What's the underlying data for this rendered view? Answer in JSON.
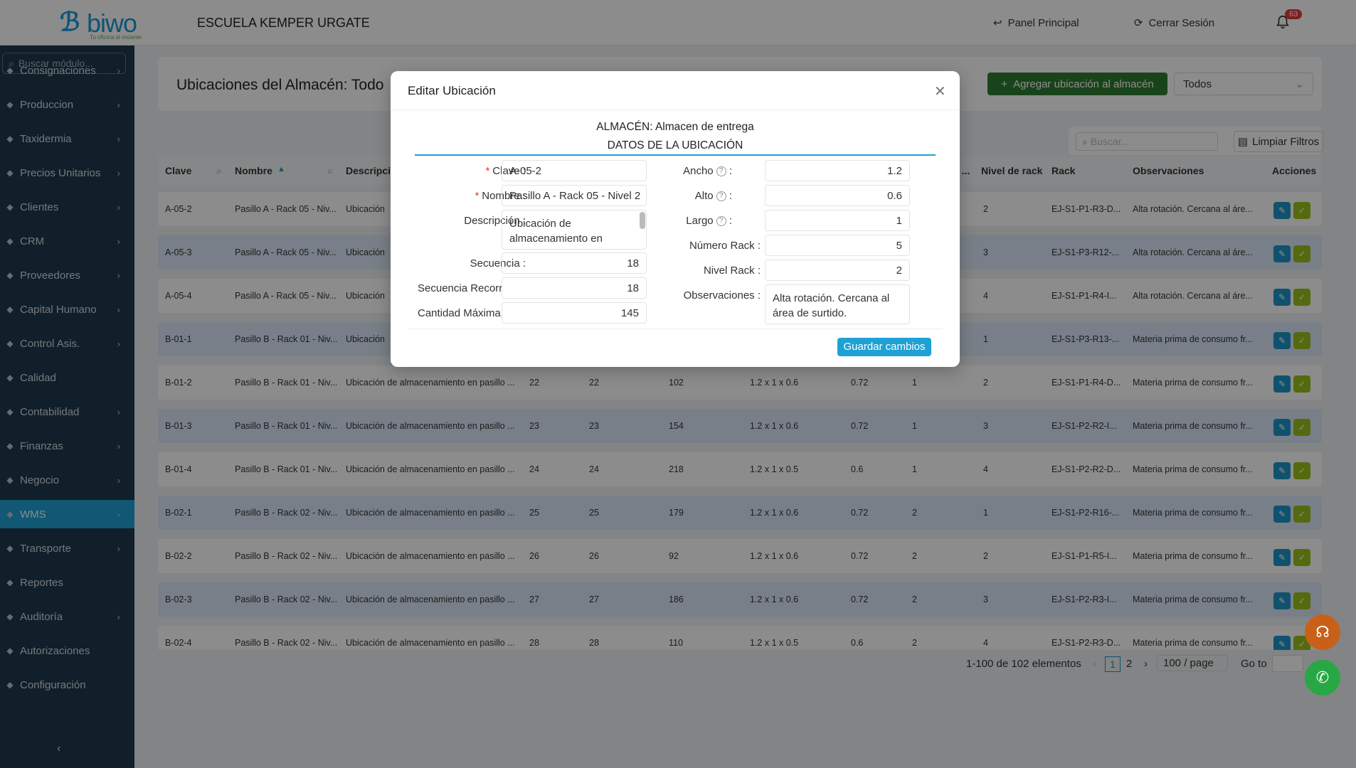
{
  "header": {
    "logo_text": "biwo",
    "logo_tagline": "Tu oficina al instante",
    "school": "ESCUELA KEMPER URGATE",
    "nav_panel": "Panel Principal",
    "nav_logout": "Cerrar Sesión",
    "notifications": "63"
  },
  "sidebar": {
    "search_placeholder": "Buscar módulo...",
    "items": [
      {
        "label": "Consignaciones",
        "icon": "file-icon"
      },
      {
        "label": "Produccion",
        "icon": "wrench-icon"
      },
      {
        "label": "Taxidermia",
        "icon": "deer-icon"
      },
      {
        "label": "Precios Unitarios",
        "icon": "grid-icon"
      },
      {
        "label": "Clientes",
        "icon": "users-icon"
      },
      {
        "label": "CRM",
        "icon": "crm-icon"
      },
      {
        "label": "Proveedores",
        "icon": "box-icon"
      },
      {
        "label": "Capital Humano",
        "icon": "person-icon"
      },
      {
        "label": "Control Asis.",
        "icon": "calendar-icon"
      },
      {
        "label": "Calidad",
        "icon": "check-icon"
      },
      {
        "label": "Contabilidad",
        "icon": "bank-icon"
      },
      {
        "label": "Finanzas",
        "icon": "finance-icon"
      },
      {
        "label": "Negocio",
        "icon": "frame-icon"
      },
      {
        "label": "WMS",
        "icon": "location-icon"
      },
      {
        "label": "Transporte",
        "icon": "truck-icon"
      },
      {
        "label": "Reportes",
        "icon": "chart-icon"
      },
      {
        "label": "Auditoría",
        "icon": "audit-icon"
      },
      {
        "label": "Autorizaciones",
        "icon": "doc-icon"
      },
      {
        "label": "Configuración",
        "icon": "gear-icon"
      }
    ]
  },
  "page": {
    "title": "Ubicaciones del Almacén: Todo",
    "add_button": "Agregar ubicación al almacén",
    "filter_select": "Todos",
    "search_placeholder": "Buscar...",
    "clear_filters": "Limpiar Filtros"
  },
  "table": {
    "headers": [
      "Clave",
      "Nombre",
      "Descripci",
      "e ...",
      "Nivel de rack",
      "Rack",
      "Observaciones",
      "Acciones"
    ],
    "rows": [
      {
        "clave": "A-05-2",
        "nombre": "Pasillo A - Rack 05 - Niv...",
        "desc": "Ubicación",
        "c1": "",
        "c2": "",
        "c3": "",
        "c4": "",
        "c5": "",
        "c6": "",
        "nivel": "2",
        "rack": "EJ-S1-P1-R3-D...",
        "obs": "Alta rotación. Cercana al áre..."
      },
      {
        "clave": "A-05-3",
        "nombre": "Pasillo A - Rack 05 - Niv...",
        "desc": "Ubicación",
        "c1": "",
        "c2": "",
        "c3": "",
        "c4": "",
        "c5": "",
        "c6": "",
        "nivel": "3",
        "rack": "EJ-S1-P3-R12-...",
        "obs": "Alta rotación. Cercana al áre..."
      },
      {
        "clave": "A-05-4",
        "nombre": "Pasillo A - Rack 05 - Niv...",
        "desc": "Ubicación",
        "c1": "",
        "c2": "",
        "c3": "",
        "c4": "",
        "c5": "",
        "c6": "",
        "nivel": "4",
        "rack": "EJ-S1-P1-R4-I...",
        "obs": "Alta rotación. Cercana al áre..."
      },
      {
        "clave": "B-01-1",
        "nombre": "Pasillo B - Rack 01 - Niv...",
        "desc": "Ubicación",
        "c1": "",
        "c2": "",
        "c3": "",
        "c4": "",
        "c5": "",
        "c6": "",
        "nivel": "1",
        "rack": "EJ-S1-P3-R13-...",
        "obs": "Materia prima de consumo fr..."
      },
      {
        "clave": "B-01-2",
        "nombre": "Pasillo B - Rack 01 - Niv...",
        "desc": "Ubicación de almacenamiento en pasillo ...",
        "c1": "22",
        "c2": "22",
        "c3": "102",
        "c4": "1.2 x 1 x 0.6",
        "c5": "0.72",
        "c6": "1",
        "nivel": "2",
        "rack": "EJ-S1-P1-R4-D...",
        "obs": "Materia prima de consumo fr..."
      },
      {
        "clave": "B-01-3",
        "nombre": "Pasillo B - Rack 01 - Niv...",
        "desc": "Ubicación de almacenamiento en pasillo ...",
        "c1": "23",
        "c2": "23",
        "c3": "154",
        "c4": "1.2 x 1 x 0.6",
        "c5": "0.72",
        "c6": "1",
        "nivel": "3",
        "rack": "EJ-S1-P2-R2-I...",
        "obs": "Materia prima de consumo fr..."
      },
      {
        "clave": "B-01-4",
        "nombre": "Pasillo B - Rack 01 - Niv...",
        "desc": "Ubicación de almacenamiento en pasillo ...",
        "c1": "24",
        "c2": "24",
        "c3": "218",
        "c4": "1.2 x 1 x 0.5",
        "c5": "0.6",
        "c6": "1",
        "nivel": "4",
        "rack": "EJ-S1-P2-R2-D...",
        "obs": "Materia prima de consumo fr..."
      },
      {
        "clave": "B-02-1",
        "nombre": "Pasillo B - Rack 02 - Niv...",
        "desc": "Ubicación de almacenamiento en pasillo ...",
        "c1": "25",
        "c2": "25",
        "c3": "179",
        "c4": "1.2 x 1 x 0.6",
        "c5": "0.72",
        "c6": "2",
        "nivel": "1",
        "rack": "EJ-S1-P2-R16-...",
        "obs": "Materia prima de consumo fr..."
      },
      {
        "clave": "B-02-2",
        "nombre": "Pasillo B - Rack 02 - Niv...",
        "desc": "Ubicación de almacenamiento en pasillo ...",
        "c1": "26",
        "c2": "26",
        "c3": "92",
        "c4": "1.2 x 1 x 0.6",
        "c5": "0.72",
        "c6": "2",
        "nivel": "2",
        "rack": "EJ-S1-P1-R5-I...",
        "obs": "Materia prima de consumo fr..."
      },
      {
        "clave": "B-02-3",
        "nombre": "Pasillo B - Rack 02 - Niv...",
        "desc": "Ubicación de almacenamiento en pasillo ...",
        "c1": "27",
        "c2": "27",
        "c3": "186",
        "c4": "1.2 x 1 x 0.6",
        "c5": "0.72",
        "c6": "2",
        "nivel": "3",
        "rack": "EJ-S1-P2-R3-I...",
        "obs": "Materia prima de consumo fr..."
      },
      {
        "clave": "B-02-4",
        "nombre": "Pasillo B - Rack 02 - Niv...",
        "desc": "Ubicación de almacenamiento en pasillo ...",
        "c1": "28",
        "c2": "28",
        "c3": "110",
        "c4": "1.2 x 1 x 0.5",
        "c5": "0.6",
        "c6": "2",
        "nivel": "4",
        "rack": "EJ-S1-P2-R3-D...",
        "obs": "Materia prima de consumo fr..."
      }
    ]
  },
  "pagination": {
    "summary": "1-100 de 102 elementos",
    "page1": "1",
    "page2": "2",
    "page_size": "100 / page",
    "goto": "Go to"
  },
  "modal": {
    "title": "Editar Ubicación",
    "warehouse": "ALMACÉN: Almacen de entrega",
    "section": "DATOS DE LA UBICACIÓN",
    "labels": {
      "clave": "Clave",
      "nombre": "Nombre",
      "descripcion": "Descripción :",
      "secuencia": "Secuencia :",
      "secuencia_recorrido": "Secuencia Recorr",
      "cantidad_maxima": "Cantidad Máxima",
      "ancho": "Ancho",
      "alto": "Alto",
      "largo": "Largo",
      "numero_rack": "Número Rack :",
      "nivel_rack": "Nivel Rack :",
      "observaciones": "Observaciones :"
    },
    "values": {
      "clave": "A-05-2",
      "nombre": "Pasillo A - Rack 05 - Nivel 2",
      "descripcion": "Ubicación de almacenamiento en",
      "secuencia": "18",
      "secuencia_recorrido": "18",
      "cantidad_maxima": "145",
      "ancho": "1.2",
      "alto": "0.6",
      "largo": "1",
      "numero_rack": "5",
      "nivel_rack": "2",
      "observaciones": "Alta rotación. Cercana al área de surtido."
    },
    "save": "Guardar cambios"
  }
}
